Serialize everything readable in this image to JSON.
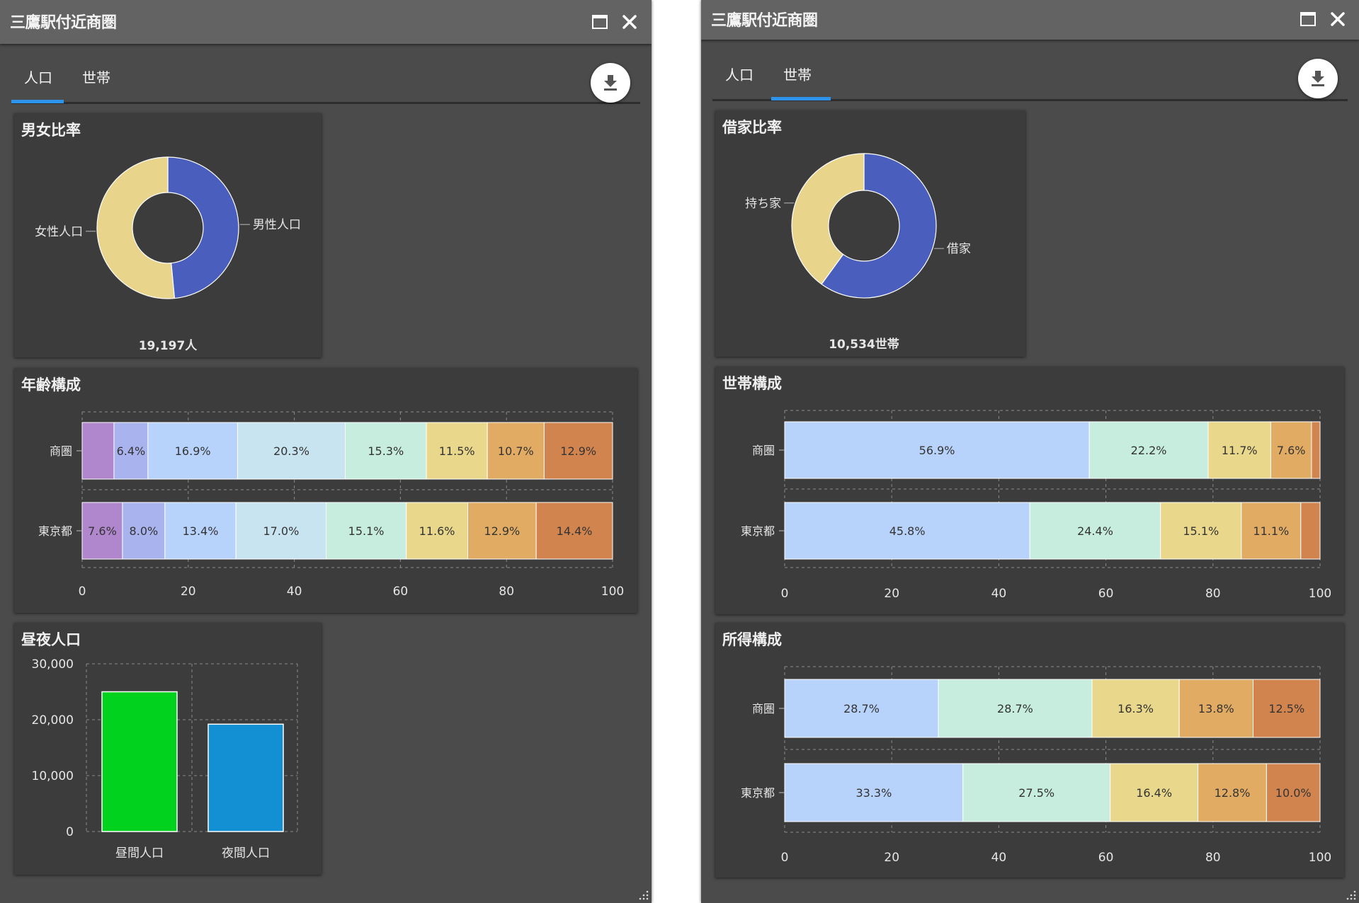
{
  "colors": {
    "male": "#4a5fbd",
    "female": "#e8d48b",
    "daytime_bar": "#00d21e",
    "nighttime_bar": "#1290d3",
    "tab_indicator": "#2e93ea",
    "seg_age": [
      "#b086cc",
      "#a9b3ee",
      "#b8d3fb",
      "#c8e4f0",
      "#c6eddd",
      "#e9d88b",
      "#e2ab63",
      "#d2844f"
    ],
    "seg_household": [
      "#b8d3fb",
      "#c6eddd",
      "#e9d88b",
      "#e2ab63",
      "#d2844f"
    ],
    "seg_income": [
      "#b8d3fb",
      "#c6eddd",
      "#e9d88b",
      "#e2ab63",
      "#d2844f"
    ]
  },
  "icons": {
    "maximize": "maximize-icon",
    "close": "close-icon",
    "download": "download-icon"
  },
  "left_panel": {
    "title": "三鷹駅付近商圏",
    "tabs": [
      {
        "label": "人口",
        "active": true
      },
      {
        "label": "世帯",
        "active": false
      }
    ],
    "gender": {
      "title": "男女比率",
      "total_label": "19,197人"
    },
    "age": {
      "title": "年齢構成"
    },
    "daynight": {
      "title": "昼夜人口"
    }
  },
  "right_panel": {
    "title": "三鷹駅付近商圏",
    "tabs": [
      {
        "label": "人口",
        "active": false
      },
      {
        "label": "世帯",
        "active": true
      }
    ],
    "rental": {
      "title": "借家比率",
      "total_label": "10,534世帯"
    },
    "household": {
      "title": "世帯構成"
    },
    "income": {
      "title": "所得構成"
    }
  },
  "chart_data": [
    {
      "id": "gender",
      "type": "pie",
      "donut": true,
      "title": "男女比率",
      "labels": [
        "男性人口",
        "女性人口"
      ],
      "values": [
        48.5,
        51.5
      ],
      "annotation": "19,197人"
    },
    {
      "id": "age",
      "type": "bar",
      "orientation": "horizontal",
      "stacked": true,
      "title": "年齢構成",
      "categories": [
        "商圏",
        "東京都"
      ],
      "series_values": [
        [
          6.0,
          6.4,
          16.9,
          20.3,
          15.3,
          11.5,
          10.7,
          12.9
        ],
        [
          7.6,
          8.0,
          13.4,
          17.0,
          15.1,
          11.6,
          12.9,
          14.4
        ]
      ],
      "value_labels": [
        [
          "",
          "6.4%",
          "16.9%",
          "20.3%",
          "15.3%",
          "11.5%",
          "10.7%",
          "12.9%"
        ],
        [
          "7.6%",
          "8.0%",
          "13.4%",
          "17.0%",
          "15.1%",
          "11.6%",
          "12.9%",
          "14.4%"
        ]
      ],
      "xlim": [
        0,
        100
      ],
      "xticks": [
        "0",
        "20",
        "40",
        "60",
        "80",
        "100"
      ]
    },
    {
      "id": "daynight",
      "type": "bar",
      "title": "昼夜人口",
      "categories": [
        "昼間人口",
        "夜間人口"
      ],
      "values": [
        25000,
        19200
      ],
      "ylim": [
        0,
        30000
      ],
      "yticks": [
        "0",
        "10,000",
        "20,000",
        "30,000"
      ]
    },
    {
      "id": "rental",
      "type": "pie",
      "donut": true,
      "title": "借家比率",
      "labels": [
        "借家",
        "持ち家"
      ],
      "values": [
        60,
        40
      ],
      "annotation": "10,534世帯"
    },
    {
      "id": "household",
      "type": "bar",
      "orientation": "horizontal",
      "stacked": true,
      "title": "世帯構成",
      "categories": [
        "商圏",
        "東京都"
      ],
      "series_values": [
        [
          56.9,
          22.2,
          11.7,
          7.6,
          1.6
        ],
        [
          45.8,
          24.4,
          15.1,
          11.1,
          3.6
        ]
      ],
      "value_labels": [
        [
          "56.9%",
          "22.2%",
          "11.7%",
          "7.6%",
          ""
        ],
        [
          "45.8%",
          "24.4%",
          "15.1%",
          "11.1%",
          ""
        ]
      ],
      "xlim": [
        0,
        100
      ],
      "xticks": [
        "0",
        "20",
        "40",
        "60",
        "80",
        "100"
      ]
    },
    {
      "id": "income",
      "type": "bar",
      "orientation": "horizontal",
      "stacked": true,
      "title": "所得構成",
      "categories": [
        "商圏",
        "東京都"
      ],
      "series_values": [
        [
          28.7,
          28.7,
          16.3,
          13.8,
          12.5
        ],
        [
          33.3,
          27.5,
          16.4,
          12.8,
          10.0
        ]
      ],
      "value_labels": [
        [
          "28.7%",
          "28.7%",
          "16.3%",
          "13.8%",
          "12.5%"
        ],
        [
          "33.3%",
          "27.5%",
          "16.4%",
          "12.8%",
          "10.0%"
        ]
      ],
      "xlim": [
        0,
        100
      ],
      "xticks": [
        "0",
        "20",
        "40",
        "60",
        "80",
        "100"
      ]
    }
  ]
}
